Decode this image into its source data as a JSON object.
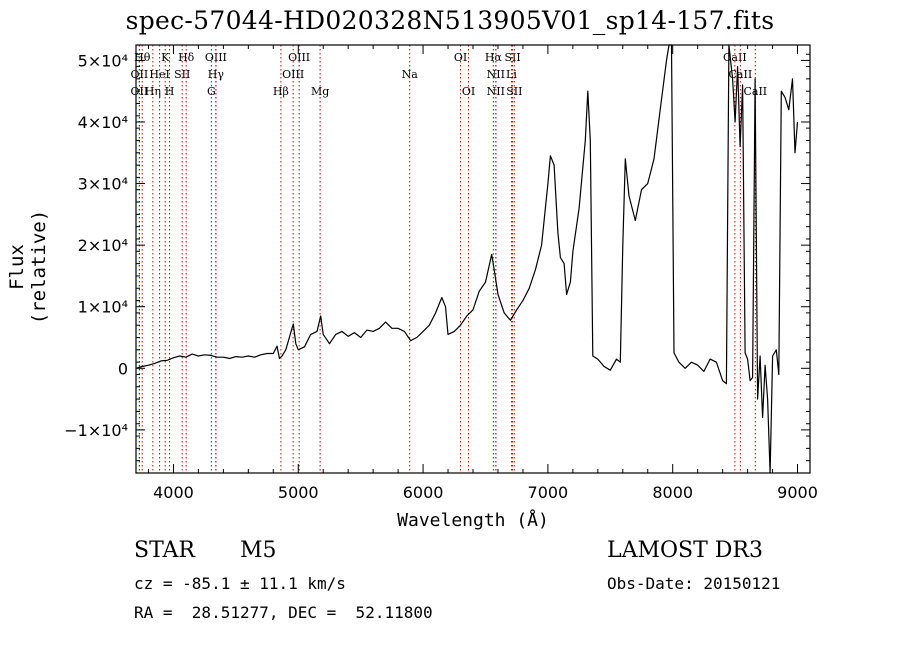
{
  "chart_data": {
    "type": "line",
    "title": "spec-57044-HD020328N513905V01_sp14-157.fits",
    "xlabel": "Wavelength (Å)",
    "ylabel": "Flux (relative)",
    "xlim": [
      3700,
      9100
    ],
    "ylim": [
      -17000,
      52500
    ],
    "x_ticks": [
      4000,
      5000,
      6000,
      7000,
      8000,
      9000
    ],
    "y_ticks": [
      {
        "value": -10000,
        "label": "−1×10⁴"
      },
      {
        "value": 0,
        "label": "0"
      },
      {
        "value": 10000,
        "label": "1×10⁴"
      },
      {
        "value": 20000,
        "label": "2×10⁴"
      },
      {
        "value": 30000,
        "label": "3×10⁴"
      },
      {
        "value": 40000,
        "label": "4×10⁴"
      },
      {
        "value": 50000,
        "label": "5×10⁴"
      }
    ],
    "series": [
      {
        "color": "#000000",
        "points": [
          [
            3700,
            0
          ],
          [
            3750,
            300
          ],
          [
            3800,
            500
          ],
          [
            3850,
            800
          ],
          [
            3900,
            1200
          ],
          [
            3950,
            1300
          ],
          [
            4000,
            1700
          ],
          [
            4050,
            2000
          ],
          [
            4100,
            1800
          ],
          [
            4150,
            2300
          ],
          [
            4200,
            2000
          ],
          [
            4250,
            2200
          ],
          [
            4300,
            2100
          ],
          [
            4350,
            1800
          ],
          [
            4400,
            1800
          ],
          [
            4450,
            1600
          ],
          [
            4500,
            1900
          ],
          [
            4550,
            1800
          ],
          [
            4600,
            2000
          ],
          [
            4650,
            1800
          ],
          [
            4700,
            2200
          ],
          [
            4750,
            2400
          ],
          [
            4800,
            2400
          ],
          [
            4830,
            3600
          ],
          [
            4850,
            1600
          ],
          [
            4870,
            2000
          ],
          [
            4900,
            3000
          ],
          [
            4950,
            6500
          ],
          [
            4960,
            7200
          ],
          [
            4980,
            4000
          ],
          [
            5000,
            3000
          ],
          [
            5050,
            3500
          ],
          [
            5100,
            5500
          ],
          [
            5150,
            6000
          ],
          [
            5180,
            8500
          ],
          [
            5200,
            5500
          ],
          [
            5250,
            4000
          ],
          [
            5300,
            5500
          ],
          [
            5350,
            6000
          ],
          [
            5400,
            5200
          ],
          [
            5450,
            5800
          ],
          [
            5500,
            5000
          ],
          [
            5550,
            6200
          ],
          [
            5600,
            6000
          ],
          [
            5650,
            6500
          ],
          [
            5700,
            7500
          ],
          [
            5750,
            6500
          ],
          [
            5800,
            6500
          ],
          [
            5850,
            6000
          ],
          [
            5900,
            4500
          ],
          [
            5950,
            5000
          ],
          [
            6000,
            6000
          ],
          [
            6050,
            7000
          ],
          [
            6100,
            9000
          ],
          [
            6150,
            11500
          ],
          [
            6180,
            10000
          ],
          [
            6200,
            5500
          ],
          [
            6250,
            6000
          ],
          [
            6300,
            7000
          ],
          [
            6350,
            8500
          ],
          [
            6400,
            9500
          ],
          [
            6450,
            12500
          ],
          [
            6500,
            14000
          ],
          [
            6550,
            18500
          ],
          [
            6570,
            16000
          ],
          [
            6600,
            12000
          ],
          [
            6650,
            9000
          ],
          [
            6700,
            7800
          ],
          [
            6750,
            9500
          ],
          [
            6800,
            11000
          ],
          [
            6850,
            13000
          ],
          [
            6900,
            16000
          ],
          [
            6950,
            20000
          ],
          [
            7000,
            30000
          ],
          [
            7020,
            34500
          ],
          [
            7050,
            33000
          ],
          [
            7080,
            22000
          ],
          [
            7100,
            18000
          ],
          [
            7130,
            17000
          ],
          [
            7150,
            12000
          ],
          [
            7180,
            14000
          ],
          [
            7200,
            19000
          ],
          [
            7250,
            26000
          ],
          [
            7300,
            37000
          ],
          [
            7320,
            45000
          ],
          [
            7340,
            37000
          ],
          [
            7360,
            2000
          ],
          [
            7400,
            1500
          ],
          [
            7450,
            300
          ],
          [
            7500,
            -300
          ],
          [
            7550,
            1500
          ],
          [
            7580,
            1000
          ],
          [
            7600,
            20000
          ],
          [
            7620,
            34000
          ],
          [
            7650,
            28000
          ],
          [
            7700,
            24000
          ],
          [
            7750,
            29000
          ],
          [
            7800,
            30000
          ],
          [
            7850,
            34000
          ],
          [
            7900,
            42000
          ],
          [
            7950,
            50000
          ],
          [
            7970,
            52500
          ],
          [
            7990,
            52500
          ],
          [
            8010,
            2500
          ],
          [
            8050,
            1000
          ],
          [
            8100,
            0
          ],
          [
            8150,
            1000
          ],
          [
            8200,
            500
          ],
          [
            8250,
            -500
          ],
          [
            8300,
            1500
          ],
          [
            8350,
            1000
          ],
          [
            8400,
            -2000
          ],
          [
            8430,
            -2500
          ],
          [
            8450,
            52500
          ],
          [
            8480,
            47000
          ],
          [
            8500,
            40000
          ],
          [
            8520,
            49000
          ],
          [
            8540,
            36000
          ],
          [
            8560,
            46000
          ],
          [
            8580,
            2500
          ],
          [
            8600,
            1500
          ],
          [
            8620,
            -2000
          ],
          [
            8640,
            -1500
          ],
          [
            8660,
            47000
          ],
          [
            8680,
            -5000
          ],
          [
            8700,
            2000
          ],
          [
            8720,
            -8000
          ],
          [
            8740,
            500
          ],
          [
            8760,
            -5000
          ],
          [
            8780,
            -17000
          ],
          [
            8800,
            2000
          ],
          [
            8830,
            3000
          ],
          [
            8850,
            -1000
          ],
          [
            8870,
            45000
          ],
          [
            8900,
            44000
          ],
          [
            8930,
            42000
          ],
          [
            8960,
            47000
          ],
          [
            8980,
            35000
          ],
          [
            9000,
            40000
          ]
        ]
      }
    ],
    "line_markers": [
      {
        "wl": 3750,
        "label": "Hθ",
        "row": 0
      },
      {
        "wl": 3934,
        "label": "K",
        "row": 0
      },
      {
        "wl": 4102,
        "label": "Hδ",
        "row": 0
      },
      {
        "wl": 4340,
        "label": "OIII",
        "row": 0
      },
      {
        "wl": 5007,
        "label": "OIII",
        "row": 0
      },
      {
        "wl": 6300,
        "label": "OI",
        "row": 0
      },
      {
        "wl": 6563,
        "label": "Hα",
        "row": 0
      },
      {
        "wl": 6717,
        "label": "SII",
        "row": 0
      },
      {
        "wl": 8498,
        "label": "CaII",
        "row": 0
      },
      {
        "wl": 3727,
        "label": "OII",
        "row": 1
      },
      {
        "wl": 3889,
        "label": "HeI",
        "row": 1
      },
      {
        "wl": 4070,
        "label": "SII",
        "row": 1
      },
      {
        "wl": 4340,
        "label": "Hγ",
        "row": 1
      },
      {
        "wl": 4959,
        "label": "OIII",
        "row": 1
      },
      {
        "wl": 5893,
        "label": "Na",
        "row": 1
      },
      {
        "wl": 6583,
        "label": "NII",
        "row": 1
      },
      {
        "wl": 6708,
        "label": "Li",
        "row": 1
      },
      {
        "wl": 8542,
        "label": "CaII",
        "row": 1
      },
      {
        "wl": 3727,
        "label": "OII",
        "row": 2
      },
      {
        "wl": 3835,
        "label": "Hη",
        "row": 2
      },
      {
        "wl": 3969,
        "label": "H",
        "row": 2
      },
      {
        "wl": 4304,
        "label": "G",
        "row": 2
      },
      {
        "wl": 4861,
        "label": "Hβ",
        "row": 2
      },
      {
        "wl": 5175,
        "label": "Mg",
        "row": 2
      },
      {
        "wl": 6364,
        "label": "OI",
        "row": 2
      },
      {
        "wl": 6583,
        "label": "NII",
        "row": 2
      },
      {
        "wl": 6731,
        "label": "SII",
        "row": 2
      },
      {
        "wl": 8662,
        "label": "CaII",
        "row": 2
      }
    ],
    "marker_color": "#cc0000"
  },
  "info": {
    "class": "STAR",
    "subclass": "M5",
    "survey": "LAMOST DR3",
    "cz": "cz = -85.1 ± 11.1 km/s",
    "obs_date": "Obs-Date: 20150121",
    "radec": "RA =  28.51277, DEC =  52.11800"
  }
}
